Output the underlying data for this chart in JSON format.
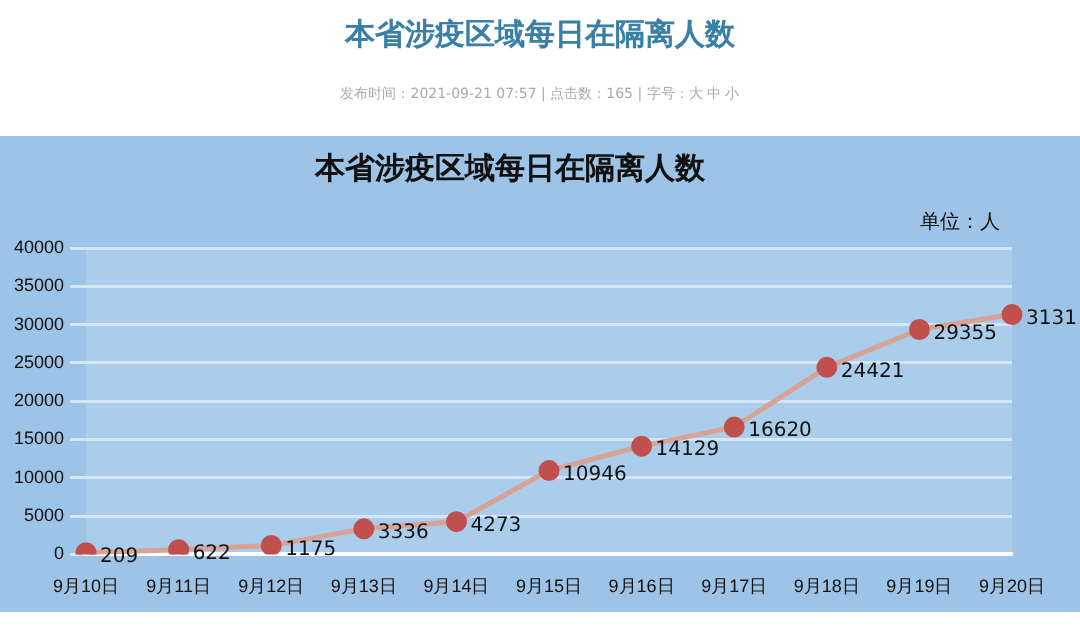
{
  "chart_data": {
    "type": "line",
    "title": "本省涉疫区域每日在隔离人数",
    "annotations": [
      "本省涉疫区域每日在隔离人数",
      "发布时间：2021-09-21 07:57 | 点击数：165 | 字号：大 中 小",
      "单位：人"
    ],
    "categories": [
      "9月10日",
      "9月11日",
      "9月12日",
      "9月13日",
      "9月14日",
      "9月15日",
      "9月16日",
      "9月17日",
      "9月18日",
      "9月19日",
      "9月20日"
    ],
    "series": [
      {
        "color": "#c0504d",
        "values": [
          209,
          622,
          1175,
          3336,
          4273,
          10946,
          14129,
          16620,
          24421,
          29355,
          31310
        ]
      }
    ],
    "value_labels": [
      "209",
      "622",
      "1175",
      "3336",
      "4273",
      "10946",
      "14129",
      "16620",
      "24421",
      "29355",
      "3131"
    ],
    "ylim": [
      0,
      40000
    ],
    "yticks": [
      0,
      5000,
      10000,
      15000,
      20000,
      25000,
      30000,
      35000,
      40000
    ],
    "grid": "y",
    "legend": false,
    "marker": "circle",
    "line_style": "solid"
  }
}
